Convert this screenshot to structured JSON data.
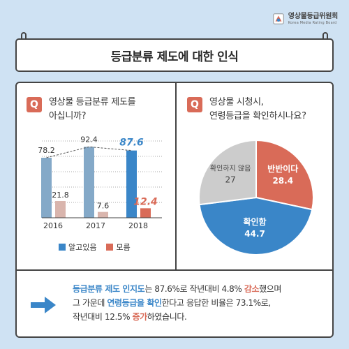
{
  "logo": {
    "name_ko": "영상물등급위원회",
    "name_en": "Korea Media Rating Board"
  },
  "title": "등급분류 제도에 대한 인식",
  "q_badge": "Q",
  "question1": {
    "line1": "영상물 등급분류 제도를",
    "line2": "아십니까?"
  },
  "question2": {
    "line1": "영상물 시청시,",
    "line2": "연령등급을 확인하시나요?"
  },
  "colors": {
    "blue": "#3a86c8",
    "blue_light": "#84a9c8",
    "red": "#d96b58",
    "red_light": "#d9b5ad",
    "gray": "#cccccc"
  },
  "chart_data": [
    {
      "type": "bar",
      "categories": [
        "2016",
        "2017",
        "2018"
      ],
      "series": [
        {
          "name": "알고있음",
          "values": [
            78.2,
            92.4,
            87.6
          ]
        },
        {
          "name": "모름",
          "values": [
            21.8,
            7.6,
            12.4
          ]
        }
      ],
      "ylim": [
        0,
        100
      ],
      "grid": true,
      "trend_line": "dashed line connecting 알고있음 values",
      "legend": "bottom"
    },
    {
      "type": "pie",
      "slices": [
        {
          "label": "반반이다",
          "value": 28.4
        },
        {
          "label": "확인함",
          "value": 44.7
        },
        {
          "label": "확인하지 않음",
          "value": 27
        }
      ]
    }
  ],
  "summary": {
    "l1_a": "등급분류 제도 인지도",
    "l1_b": "는 87.6%로 작년대비 4.8% ",
    "l1_c": "감소",
    "l1_d": "했으며",
    "l2_a": "그 가운데 ",
    "l2_b": "연령등급을 확인",
    "l2_c": "한다고 응답한 비율은 73.1%로,",
    "l3_a": "작년대비 12.5% ",
    "l3_b": "증가",
    "l3_c": "하였습니다."
  }
}
